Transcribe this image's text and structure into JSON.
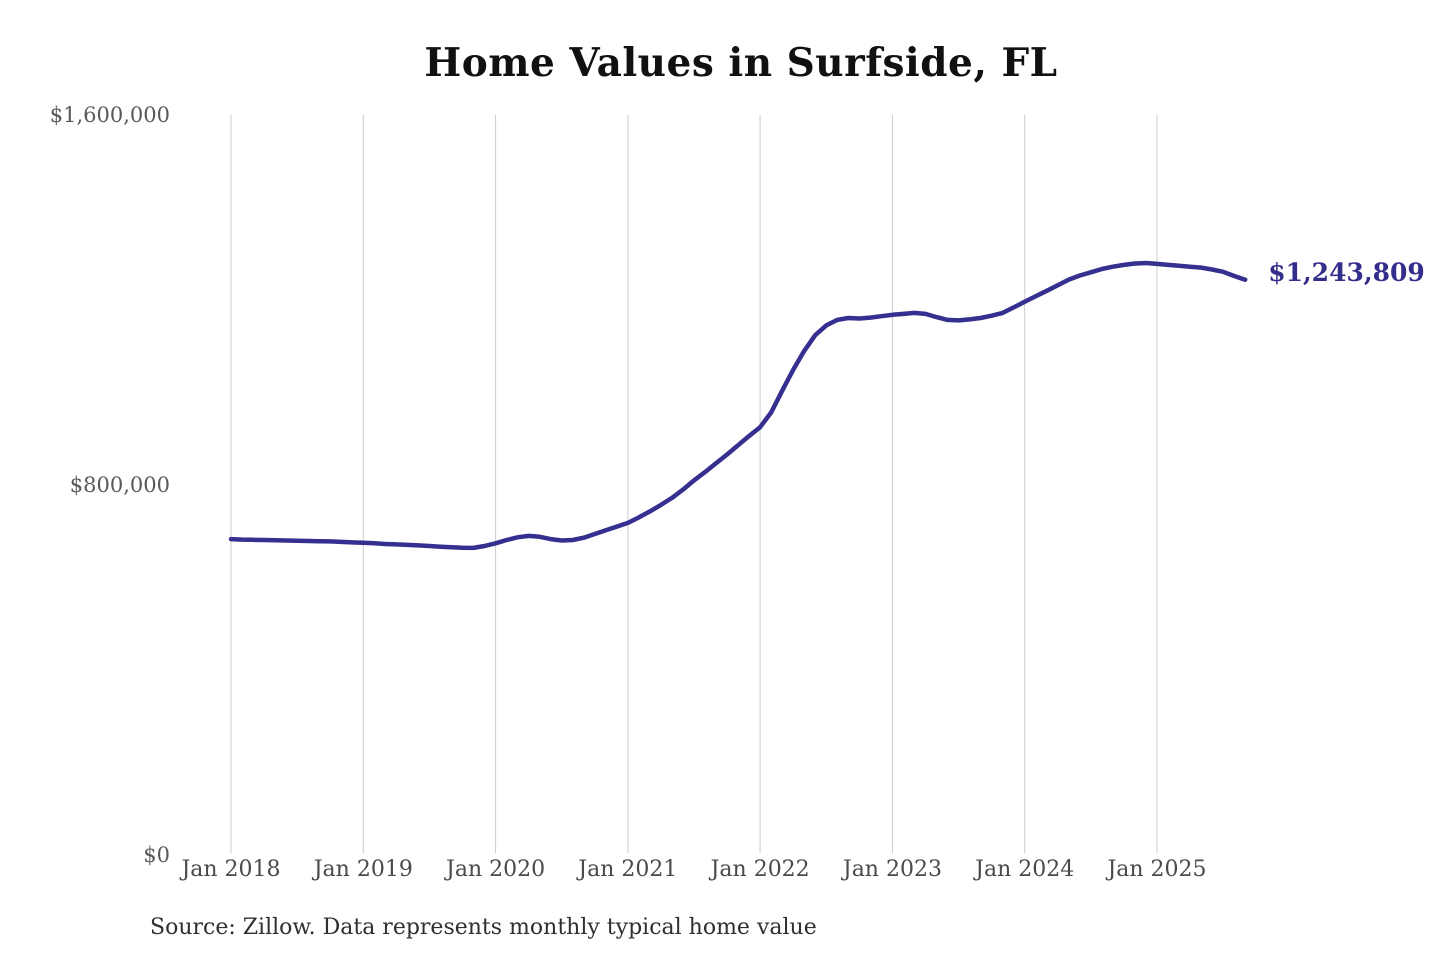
{
  "chart_data": {
    "type": "line",
    "title": "Home Values in Surfside, FL",
    "xlabel": "",
    "ylabel": "",
    "ylim": [
      0,
      1600000
    ],
    "y_tick_values": [
      0,
      800000,
      1600000
    ],
    "y_tick_labels": [
      "$0",
      "$800,000",
      "$1,600,000"
    ],
    "x_tick_labels": [
      "Jan 2018",
      "Jan 2019",
      "Jan 2020",
      "Jan 2021",
      "Jan 2022",
      "Jan 2023",
      "Jan 2024",
      "Jan 2025"
    ],
    "x_tick_month_indices": [
      0,
      12,
      24,
      36,
      48,
      60,
      72,
      84
    ],
    "interval": "monthly",
    "start_month": "Jan 2018",
    "end_month": "Sep 2025",
    "grid": "vertical-only",
    "legend": "none",
    "end_label": "$1,243,809",
    "end_value": 1243809,
    "annotation": "Source: Zillow. Data represents monthly typical home value",
    "series": [
      {
        "name": "Monthly typical home value",
        "values": [
          683000,
          682000,
          681500,
          681000,
          680500,
          680000,
          679500,
          679000,
          678500,
          678000,
          677000,
          676000,
          675000,
          674000,
          672500,
          671500,
          670500,
          669500,
          668000,
          666500,
          665500,
          664500,
          664000,
          668000,
          674000,
          681000,
          687000,
          690000,
          688000,
          683000,
          680000,
          681000,
          686000,
          694000,
          702000,
          710000,
          718000,
          730000,
          743000,
          757000,
          772000,
          790000,
          810000,
          828000,
          847000,
          866000,
          886000,
          906000,
          925000,
          957000,
          1004000,
          1049000,
          1090000,
          1124000,
          1145000,
          1157000,
          1161000,
          1160000,
          1162000,
          1165000,
          1168000,
          1170000,
          1172000,
          1170000,
          1163000,
          1157000,
          1156000,
          1158000,
          1161000,
          1166000,
          1172000,
          1184000,
          1196000,
          1208000,
          1220000,
          1232000,
          1244000,
          1253000,
          1260000,
          1267000,
          1272000,
          1276000,
          1279000,
          1280000,
          1278000,
          1276000,
          1274000,
          1272000,
          1270000,
          1266000,
          1261000,
          1252000,
          1243809
        ]
      }
    ]
  },
  "colors": {
    "line": "#352f90",
    "end_label_text": "#332e8b",
    "grid": "#cccccc",
    "title_text": "#111111",
    "axis_text": "#4a4a4a",
    "y_axis_text": "#595959",
    "source_text": "#2f2f2f",
    "background": "#ffffff"
  }
}
